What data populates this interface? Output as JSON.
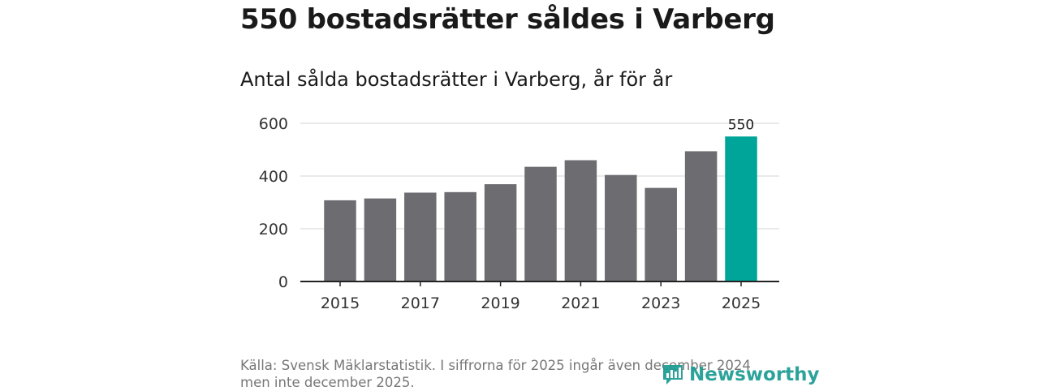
{
  "header": {
    "title": "550 bostadsrätter såldes i Varberg",
    "subtitle": "Antal sålda bostadsrätter i Varberg, år för år"
  },
  "chart_data": {
    "type": "bar",
    "title": "Antal sålda bostadsrätter i Varberg, år för år",
    "categories": [
      "2015",
      "2016",
      "2017",
      "2018",
      "2019",
      "2020",
      "2021",
      "2022",
      "2023",
      "2024",
      "2025"
    ],
    "values": [
      308,
      315,
      337,
      339,
      369,
      435,
      460,
      404,
      355,
      494,
      550
    ],
    "x_tick_labels": [
      "2015",
      "2017",
      "2019",
      "2021",
      "2023",
      "2025"
    ],
    "y_ticks": [
      0,
      200,
      400,
      600
    ],
    "ylim": [
      0,
      600
    ],
    "xlabel": "",
    "ylabel": "",
    "grid": true,
    "highlight_category": "2025",
    "data_labels": [
      {
        "category": "2025",
        "text": "550"
      }
    ],
    "colors": {
      "bar": "#6d6c71",
      "highlight": "#00a59a",
      "grid": "#dddddd",
      "axis": "#222222"
    }
  },
  "footer": {
    "source_line1": "Källa: Svensk Mäklarstatistik. I siffrorna för 2025 ingår även december 2024",
    "source_line2": "men inte december 2025.",
    "logo_text": "Newsworthy",
    "logo_icon": "bar-chart-speech-bubble-icon",
    "logo_color": "#1b9c92"
  }
}
